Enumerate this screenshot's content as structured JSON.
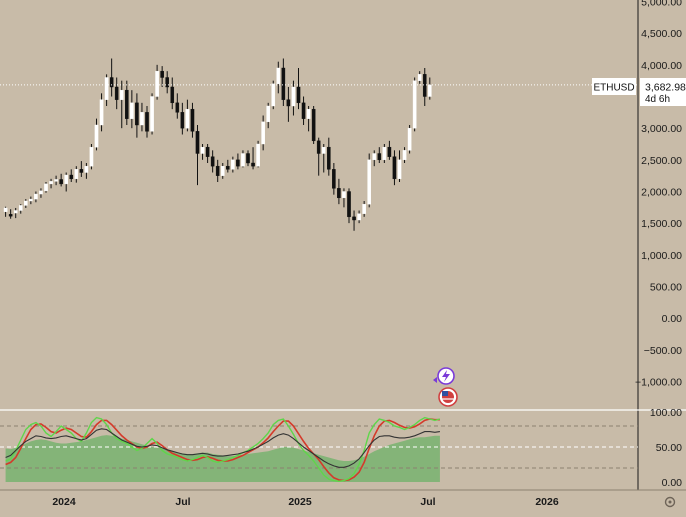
{
  "chart_data": [
    {
      "type": "candlestick",
      "symbol": "ETHUSD",
      "last_price_label": "3,682.98",
      "countdown_label": "4d 6h",
      "y_ticks": [
        "5,000.00",
        "4,500.00",
        "4,000.00",
        "3,500.00",
        "3,000.00",
        "2,500.00",
        "2,000.00",
        "1,500.00",
        "1,000.00",
        "500.00",
        "0.00",
        "−500.00",
        "−1,000.00"
      ],
      "y_tick_values": [
        5000,
        4500,
        4000,
        3500,
        3000,
        2500,
        2000,
        1500,
        1000,
        500,
        0,
        -500,
        -1000
      ],
      "ylim": [
        -1000,
        5000
      ],
      "last_price": 3682.98,
      "candles": [
        {
          "o": 1680,
          "h": 1760,
          "l": 1600,
          "c": 1740
        },
        {
          "o": 1640,
          "h": 1720,
          "l": 1570,
          "c": 1610
        },
        {
          "o": 1660,
          "h": 1740,
          "l": 1580,
          "c": 1700
        },
        {
          "o": 1700,
          "h": 1800,
          "l": 1650,
          "c": 1780
        },
        {
          "o": 1780,
          "h": 1880,
          "l": 1740,
          "c": 1850
        },
        {
          "o": 1850,
          "h": 1920,
          "l": 1800,
          "c": 1880
        },
        {
          "o": 1880,
          "h": 2000,
          "l": 1830,
          "c": 1960
        },
        {
          "o": 1960,
          "h": 2050,
          "l": 1900,
          "c": 2010
        },
        {
          "o": 2010,
          "h": 2150,
          "l": 1980,
          "c": 2120
        },
        {
          "o": 2120,
          "h": 2200,
          "l": 2050,
          "c": 2160
        },
        {
          "o": 2160,
          "h": 2250,
          "l": 2100,
          "c": 2190
        },
        {
          "o": 2190,
          "h": 2280,
          "l": 2080,
          "c": 2120
        },
        {
          "o": 2120,
          "h": 2300,
          "l": 2000,
          "c": 2260
        },
        {
          "o": 2260,
          "h": 2350,
          "l": 2150,
          "c": 2200
        },
        {
          "o": 2200,
          "h": 2400,
          "l": 2140,
          "c": 2350
        },
        {
          "o": 2350,
          "h": 2480,
          "l": 2230,
          "c": 2300
        },
        {
          "o": 2300,
          "h": 2450,
          "l": 2200,
          "c": 2400
        },
        {
          "o": 2400,
          "h": 2750,
          "l": 2350,
          "c": 2700
        },
        {
          "o": 2700,
          "h": 3150,
          "l": 2650,
          "c": 3050
        },
        {
          "o": 3050,
          "h": 3550,
          "l": 2950,
          "c": 3450
        },
        {
          "o": 3450,
          "h": 3850,
          "l": 3350,
          "c": 3800
        },
        {
          "o": 3800,
          "h": 4100,
          "l": 3500,
          "c": 3650
        },
        {
          "o": 3650,
          "h": 3800,
          "l": 3300,
          "c": 3450
        },
        {
          "o": 3450,
          "h": 3750,
          "l": 3000,
          "c": 3600
        },
        {
          "o": 3600,
          "h": 3750,
          "l": 3050,
          "c": 3150
        },
        {
          "o": 3150,
          "h": 3600,
          "l": 3000,
          "c": 3400
        },
        {
          "o": 3400,
          "h": 3550,
          "l": 2850,
          "c": 3050
        },
        {
          "o": 3050,
          "h": 3400,
          "l": 2950,
          "c": 3250
        },
        {
          "o": 3250,
          "h": 3350,
          "l": 2850,
          "c": 2950
        },
        {
          "o": 2950,
          "h": 3550,
          "l": 2900,
          "c": 3500
        },
        {
          "o": 3500,
          "h": 4000,
          "l": 3450,
          "c": 3900
        },
        {
          "o": 3900,
          "h": 3980,
          "l": 3650,
          "c": 3800
        },
        {
          "o": 3800,
          "h": 3900,
          "l": 3550,
          "c": 3650
        },
        {
          "o": 3650,
          "h": 3800,
          "l": 3300,
          "c": 3400
        },
        {
          "o": 3400,
          "h": 3550,
          "l": 3150,
          "c": 3250
        },
        {
          "o": 3250,
          "h": 3400,
          "l": 2900,
          "c": 3000
        },
        {
          "o": 3000,
          "h": 3450,
          "l": 2950,
          "c": 3300
        },
        {
          "o": 3300,
          "h": 3400,
          "l": 2850,
          "c": 2950
        },
        {
          "o": 2950,
          "h": 3050,
          "l": 2100,
          "c": 2600
        },
        {
          "o": 2600,
          "h": 2750,
          "l": 2500,
          "c": 2700
        },
        {
          "o": 2700,
          "h": 2750,
          "l": 2450,
          "c": 2550
        },
        {
          "o": 2550,
          "h": 2650,
          "l": 2300,
          "c": 2400
        },
        {
          "o": 2400,
          "h": 2500,
          "l": 2150,
          "c": 2250
        },
        {
          "o": 2250,
          "h": 2450,
          "l": 2200,
          "c": 2400
        },
        {
          "o": 2400,
          "h": 2500,
          "l": 2300,
          "c": 2350
        },
        {
          "o": 2350,
          "h": 2550,
          "l": 2300,
          "c": 2500
        },
        {
          "o": 2500,
          "h": 2600,
          "l": 2350,
          "c": 2400
        },
        {
          "o": 2400,
          "h": 2650,
          "l": 2380,
          "c": 2600
        },
        {
          "o": 2600,
          "h": 2650,
          "l": 2400,
          "c": 2450
        },
        {
          "o": 2450,
          "h": 2700,
          "l": 2350,
          "c": 2400
        },
        {
          "o": 2400,
          "h": 2800,
          "l": 2380,
          "c": 2750
        },
        {
          "o": 2750,
          "h": 3200,
          "l": 2650,
          "c": 3100
        },
        {
          "o": 3100,
          "h": 3400,
          "l": 3000,
          "c": 3350
        },
        {
          "o": 3350,
          "h": 3750,
          "l": 3300,
          "c": 3700
        },
        {
          "o": 3700,
          "h": 4050,
          "l": 3550,
          "c": 3950
        },
        {
          "o": 3950,
          "h": 4100,
          "l": 3350,
          "c": 3450
        },
        {
          "o": 3450,
          "h": 3650,
          "l": 3100,
          "c": 3350
        },
        {
          "o": 3350,
          "h": 3750,
          "l": 3200,
          "c": 3650
        },
        {
          "o": 3650,
          "h": 3950,
          "l": 3300,
          "c": 3400
        },
        {
          "o": 3400,
          "h": 3500,
          "l": 3050,
          "c": 3150
        },
        {
          "o": 3150,
          "h": 3350,
          "l": 2950,
          "c": 3300
        },
        {
          "o": 3300,
          "h": 3350,
          "l": 2750,
          "c": 2800
        },
        {
          "o": 2800,
          "h": 2850,
          "l": 2250,
          "c": 2600
        },
        {
          "o": 2600,
          "h": 2750,
          "l": 2300,
          "c": 2700
        },
        {
          "o": 2700,
          "h": 2850,
          "l": 2250,
          "c": 2350
        },
        {
          "o": 2350,
          "h": 2450,
          "l": 1950,
          "c": 2050
        },
        {
          "o": 2050,
          "h": 2200,
          "l": 1800,
          "c": 1900
        },
        {
          "o": 1900,
          "h": 2050,
          "l": 1750,
          "c": 2000
        },
        {
          "o": 2000,
          "h": 2050,
          "l": 1500,
          "c": 1600
        },
        {
          "o": 1600,
          "h": 1700,
          "l": 1380,
          "c": 1550
        },
        {
          "o": 1550,
          "h": 1700,
          "l": 1500,
          "c": 1650
        },
        {
          "o": 1650,
          "h": 1850,
          "l": 1600,
          "c": 1800
        },
        {
          "o": 1800,
          "h": 2600,
          "l": 1750,
          "c": 2500
        },
        {
          "o": 2500,
          "h": 2650,
          "l": 2400,
          "c": 2600
        },
        {
          "o": 2600,
          "h": 2700,
          "l": 2450,
          "c": 2500
        },
        {
          "o": 2500,
          "h": 2750,
          "l": 2450,
          "c": 2700
        },
        {
          "o": 2700,
          "h": 2800,
          "l": 2500,
          "c": 2550
        },
        {
          "o": 2550,
          "h": 2650,
          "l": 2100,
          "c": 2200
        },
        {
          "o": 2200,
          "h": 2650,
          "l": 2150,
          "c": 2500
        },
        {
          "o": 2500,
          "h": 2700,
          "l": 2450,
          "c": 2650
        },
        {
          "o": 2650,
          "h": 3050,
          "l": 2600,
          "c": 3000
        },
        {
          "o": 3000,
          "h": 3800,
          "l": 2950,
          "c": 3750
        },
        {
          "o": 3750,
          "h": 3900,
          "l": 3700,
          "c": 3850
        },
        {
          "o": 3850,
          "h": 3950,
          "l": 3350,
          "c": 3500
        },
        {
          "o": 3500,
          "h": 3800,
          "l": 3450,
          "c": 3683
        }
      ],
      "x_labels": [
        "2024",
        "Jul",
        "2025",
        "Jul",
        "2026"
      ],
      "osc_y_ticks": [
        "100.00",
        "50.00",
        "0.00"
      ],
      "osc_y_tick_values": [
        100,
        50,
        0
      ],
      "osc_ylim": [
        0,
        100
      ],
      "osc_levels": [
        80,
        50,
        20
      ],
      "osc_area": [
        48,
        47,
        49,
        52,
        55,
        58,
        60,
        61,
        60,
        58,
        56,
        55,
        55,
        56,
        57,
        58,
        60,
        62,
        64,
        66,
        67,
        66,
        64,
        62,
        60,
        58,
        56,
        54,
        52,
        50,
        49,
        48,
        46,
        44,
        42,
        41,
        40,
        40,
        41,
        42,
        42,
        40,
        39,
        38,
        37,
        37,
        38,
        39,
        40,
        41,
        42,
        43,
        44,
        46,
        48,
        50,
        50,
        49,
        47,
        45,
        43,
        41,
        39,
        37,
        35,
        33,
        31,
        30,
        30,
        31,
        33,
        36,
        40,
        44,
        47,
        50,
        53,
        55,
        57,
        59,
        61,
        63,
        64,
        64,
        65,
        66,
        66
      ],
      "osc_k": [
        30,
        33,
        45,
        60,
        75,
        82,
        85,
        80,
        70,
        65,
        72,
        80,
        75,
        70,
        62,
        58,
        70,
        85,
        92,
        90,
        82,
        70,
        62,
        58,
        55,
        50,
        45,
        48,
        55,
        62,
        55,
        45,
        40,
        38,
        35,
        32,
        30,
        32,
        35,
        38,
        35,
        30,
        28,
        30,
        32,
        35,
        38,
        42,
        45,
        50,
        55,
        62,
        70,
        82,
        88,
        90,
        80,
        68,
        55,
        45,
        38,
        30,
        20,
        10,
        4,
        2,
        1,
        2,
        5,
        12,
        25,
        45,
        70,
        82,
        90,
        88,
        85,
        80,
        78,
        75,
        78,
        82,
        88,
        92,
        90,
        88,
        90
      ],
      "osc_d": [
        25,
        28,
        35,
        48,
        62,
        75,
        82,
        83,
        78,
        72,
        70,
        74,
        77,
        75,
        70,
        65,
        64,
        72,
        82,
        88,
        88,
        82,
        74,
        66,
        60,
        55,
        50,
        48,
        50,
        55,
        57,
        52,
        46,
        41,
        38,
        35,
        32,
        31,
        32,
        35,
        36,
        34,
        31,
        30,
        30,
        32,
        35,
        38,
        42,
        46,
        50,
        56,
        63,
        72,
        80,
        87,
        87,
        80,
        69,
        58,
        48,
        40,
        32,
        22,
        13,
        6,
        3,
        2,
        3,
        7,
        14,
        28,
        48,
        66,
        80,
        87,
        88,
        85,
        81,
        78,
        77,
        79,
        83,
        88,
        90,
        89,
        89
      ],
      "osc_avg": [
        35,
        38,
        45,
        52,
        58,
        62,
        66,
        65,
        63,
        62,
        63,
        65,
        66,
        64,
        62,
        60,
        62,
        68,
        74,
        76,
        75,
        70,
        65,
        60,
        57,
        54,
        51,
        50,
        51,
        53,
        52,
        49,
        46,
        44,
        42,
        40,
        39,
        39,
        40,
        41,
        40,
        38,
        37,
        37,
        38,
        39,
        40,
        42,
        44,
        47,
        50,
        54,
        58,
        63,
        67,
        69,
        67,
        62,
        56,
        50,
        45,
        40,
        35,
        30,
        26,
        23,
        21,
        21,
        23,
        27,
        33,
        42,
        52,
        60,
        65,
        66,
        66,
        64,
        63,
        63,
        64,
        66,
        69,
        72,
        72,
        71,
        72
      ]
    }
  ]
}
